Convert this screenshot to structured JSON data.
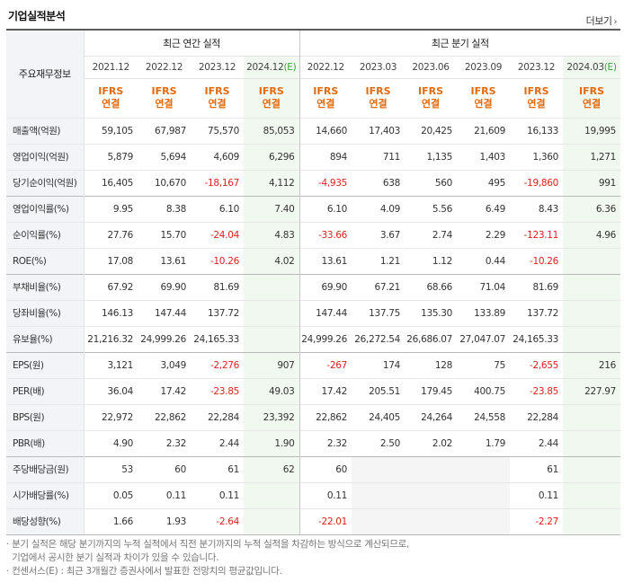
{
  "header": {
    "title": "기업실적분석",
    "more_label": "더보기",
    "more_arrow": "›"
  },
  "table": {
    "label_header": "주요재무정보",
    "groups": {
      "annual": "최근 연간 실적",
      "quarterly": "최근 분기 실적"
    },
    "periods": [
      {
        "label": "2021.12",
        "estimate": false
      },
      {
        "label": "2022.12",
        "estimate": false
      },
      {
        "label": "2023.12",
        "estimate": false
      },
      {
        "label": "2024.12",
        "estimate": true
      },
      {
        "label": "2022.12",
        "estimate": false
      },
      {
        "label": "2023.03",
        "estimate": false
      },
      {
        "label": "2023.06",
        "estimate": false
      },
      {
        "label": "2023.09",
        "estimate": false
      },
      {
        "label": "2023.12",
        "estimate": false
      },
      {
        "label": "2024.03",
        "estimate": true
      }
    ],
    "estimate_mark": "(E)",
    "standard": {
      "line1": "IFRS",
      "line2": "연결"
    },
    "rows": [
      {
        "label": "매출액(억원)",
        "values": [
          "59,105",
          "67,987",
          "75,570",
          "85,053",
          "14,660",
          "17,403",
          "20,425",
          "21,609",
          "16,133",
          "19,995"
        ]
      },
      {
        "label": "영업이익(억원)",
        "values": [
          "5,879",
          "5,694",
          "4,609",
          "6,296",
          "894",
          "711",
          "1,135",
          "1,403",
          "1,360",
          "1,271"
        ]
      },
      {
        "label": "당기순이익(억원)",
        "values": [
          "16,405",
          "10,670",
          "-18,167",
          "4,112",
          "-4,935",
          "638",
          "560",
          "495",
          "-19,860",
          "991"
        ]
      },
      {
        "label": "영업이익률(%)",
        "group_start": true,
        "values": [
          "9.95",
          "8.38",
          "6.10",
          "7.40",
          "6.10",
          "4.09",
          "5.56",
          "6.49",
          "8.43",
          "6.36"
        ]
      },
      {
        "label": "순이익률(%)",
        "values": [
          "27.76",
          "15.70",
          "-24.04",
          "4.83",
          "-33.66",
          "3.67",
          "2.74",
          "2.29",
          "-123.11",
          "4.96"
        ]
      },
      {
        "label": "ROE(%)",
        "values": [
          "17.08",
          "13.61",
          "-10.26",
          "4.02",
          "13.61",
          "1.21",
          "1.12",
          "0.44",
          "-10.26",
          ""
        ]
      },
      {
        "label": "부채비율(%)",
        "group_start": true,
        "values": [
          "67.92",
          "69.90",
          "81.69",
          "",
          "69.90",
          "67.21",
          "68.66",
          "71.04",
          "81.69",
          ""
        ]
      },
      {
        "label": "당좌비율(%)",
        "values": [
          "146.13",
          "147.44",
          "137.72",
          "",
          "147.44",
          "137.75",
          "135.30",
          "133.89",
          "137.72",
          ""
        ]
      },
      {
        "label": "유보율(%)",
        "values": [
          "21,216.32",
          "24,999.26",
          "24,165.33",
          "",
          "24,999.26",
          "26,272.54",
          "26,686.07",
          "27,047.07",
          "24,165.33",
          ""
        ]
      },
      {
        "label": "EPS(원)",
        "group_start": true,
        "values": [
          "3,121",
          "3,049",
          "-2,276",
          "907",
          "-267",
          "174",
          "128",
          "75",
          "-2,655",
          "216"
        ]
      },
      {
        "label": "PER(배)",
        "values": [
          "36.04",
          "17.42",
          "-23.85",
          "49.03",
          "17.42",
          "205.51",
          "179.45",
          "400.75",
          "-23.85",
          "227.97"
        ]
      },
      {
        "label": "BPS(원)",
        "values": [
          "22,972",
          "22,862",
          "22,284",
          "23,392",
          "22,862",
          "24,405",
          "24,264",
          "24,558",
          "22,284",
          ""
        ]
      },
      {
        "label": "PBR(배)",
        "values": [
          "4.90",
          "2.32",
          "2.44",
          "1.90",
          "2.32",
          "2.50",
          "2.02",
          "1.79",
          "2.44",
          ""
        ]
      },
      {
        "label": "주당배당금(원)",
        "group_start": true,
        "values": [
          "53",
          "60",
          "61",
          "62",
          "60",
          "",
          "",
          "",
          "61",
          ""
        ],
        "blank_cols": [
          5,
          6,
          7
        ]
      },
      {
        "label": "시가배당률(%)",
        "values": [
          "0.05",
          "0.11",
          "0.11",
          "",
          "0.11",
          "",
          "",
          "",
          "0.11",
          ""
        ],
        "blank_cols": [
          5,
          6,
          7
        ]
      },
      {
        "label": "배당성향(%)",
        "values": [
          "1.66",
          "1.93",
          "-2.64",
          "",
          "-22.01",
          "",
          "",
          "",
          "-2.27",
          ""
        ],
        "blank_cols": [
          5,
          6,
          7
        ]
      }
    ]
  },
  "notes": [
    "· 분기 실적은 해당 분기까지의 누적 실적에서 직전 분기까지의 누적 실적을 차감하는 방식으로 계산되므로,",
    "  기업에서 공시한 분기 실적과 차이가 있을 수 있습니다.",
    "· 컨센서스(E) : 최근 3개월간 증권사에서 발표한 전망치의 평균값입니다."
  ]
}
